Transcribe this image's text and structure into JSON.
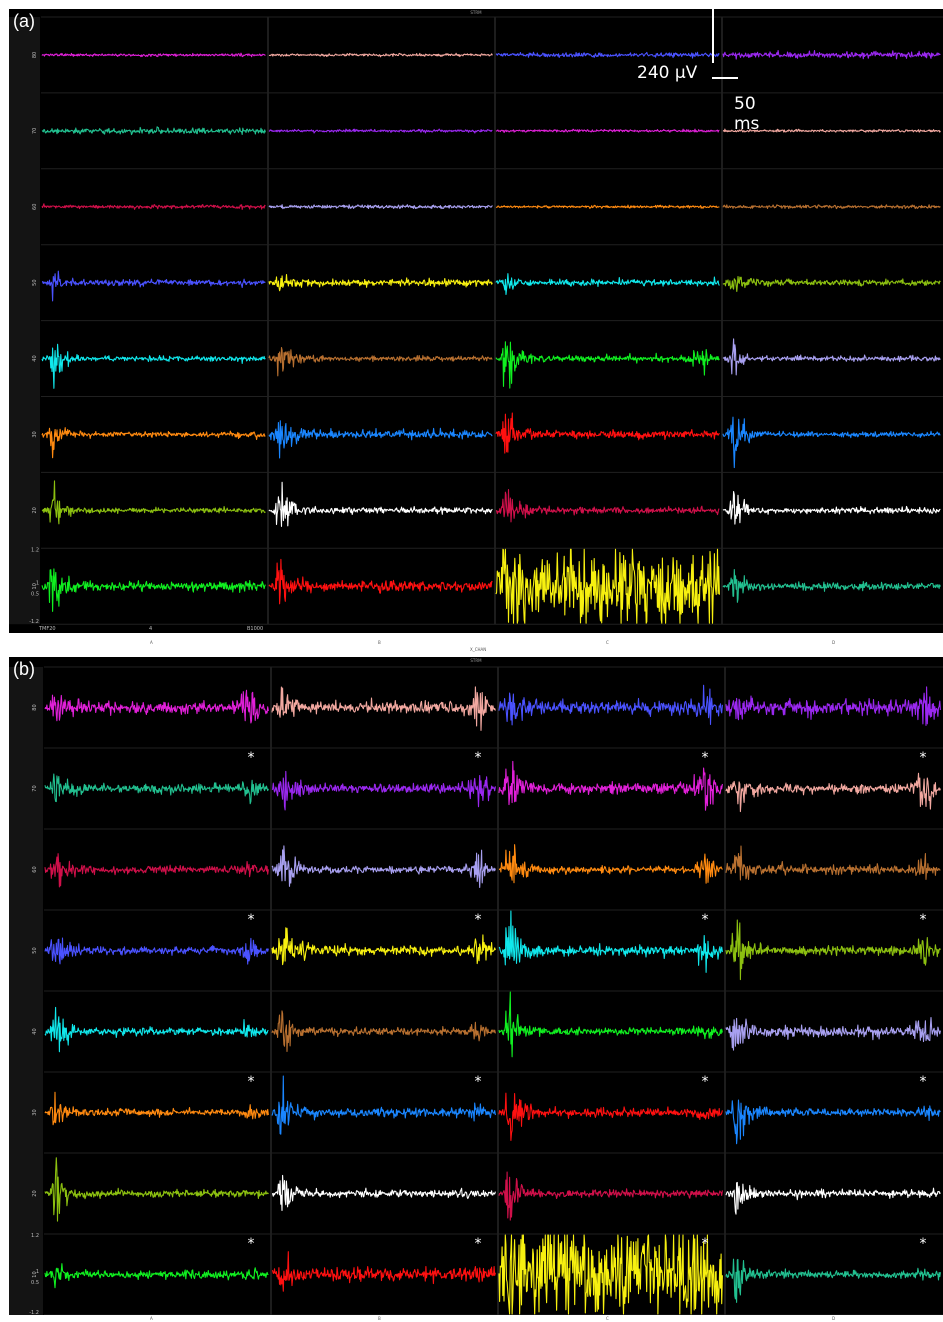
{
  "chart_data": [
    {
      "type": "line",
      "panel_label": "(a)",
      "header_text": "STRM",
      "x_label": "X_CHAN",
      "column_labels": [
        "A",
        "B",
        "C",
        "D"
      ],
      "row_labels": [
        "80",
        "70",
        "60",
        "50",
        "40",
        "30",
        "20",
        "10"
      ],
      "y_ticks": [
        "1.2",
        "1",
        "0.5",
        "-1.2"
      ],
      "corner_labels": [
        "TMF20",
        "4",
        "B1000"
      ],
      "scale_bar": {
        "amplitude": "240 µV",
        "time": "50 ms"
      },
      "grid": true,
      "rows": [
        {
          "colors": [
            "#e020d8",
            "#f2a8a0",
            "#4a52ff",
            "#9a28f0"
          ],
          "noise": [
            0.03,
            0.03,
            0.05,
            0.07
          ],
          "burst": [
            0,
            0,
            0,
            0
          ],
          "peaks": [
            0,
            0,
            0,
            0
          ]
        },
        {
          "colors": [
            "#22c090",
            "#9a28f0",
            "#e020d8",
            "#f2a8a0"
          ],
          "noise": [
            0.06,
            0.03,
            0.03,
            0.03
          ],
          "burst": [
            0,
            0,
            0,
            0
          ],
          "peaks": [
            0,
            0,
            0,
            0
          ]
        },
        {
          "colors": [
            "#d0104a",
            "#a8a0f0",
            "#ff8a10",
            "#b87030"
          ],
          "noise": [
            0.04,
            0.04,
            0.03,
            0.04
          ],
          "burst": [
            0,
            0,
            0,
            0
          ],
          "peaks": [
            0,
            0,
            0,
            0
          ]
        },
        {
          "colors": [
            "#4a52ff",
            "#f7f010",
            "#10e8ec",
            "#8cc010"
          ],
          "noise": [
            0.07,
            0.08,
            0.07,
            0.07
          ],
          "burst": [
            0.25,
            0.2,
            0.2,
            0.3
          ],
          "peaks": [
            0,
            0,
            0,
            0
          ]
        },
        {
          "colors": [
            "#10e8ec",
            "#b87030",
            "#10f020",
            "#a8a0f0"
          ],
          "noise": [
            0.06,
            0.06,
            0.07,
            0.06
          ],
          "burst": [
            0.55,
            0.45,
            0.85,
            0.45
          ],
          "peaks": [
            0,
            0,
            0.25,
            0
          ]
        },
        {
          "colors": [
            "#ff8a10",
            "#1a86ff",
            "#ff1010",
            "#1a86ff"
          ],
          "noise": [
            0.06,
            0.1,
            0.1,
            0.06
          ],
          "burst": [
            0.6,
            0.8,
            0.75,
            0.7
          ],
          "peaks": [
            0,
            0,
            0,
            0
          ]
        },
        {
          "colors": [
            "#8cc010",
            "#ffffff",
            "#d0104a",
            "#ffffff"
          ],
          "noise": [
            0.06,
            0.07,
            0.07,
            0.07
          ],
          "burst": [
            0.6,
            0.8,
            0.6,
            0.5
          ],
          "peaks": [
            0,
            0,
            0,
            0
          ]
        },
        {
          "colors": [
            "#10f020",
            "#ff1010",
            "#f7f010",
            "#22c090"
          ],
          "noise": [
            0.1,
            0.12,
            0.9,
            0.08
          ],
          "burst": [
            0.7,
            0.6,
            0.2,
            0.6
          ],
          "peaks": [
            0,
            0,
            0,
            0
          ]
        }
      ]
    },
    {
      "type": "line",
      "panel_label": "(b)",
      "header_text": "STRM",
      "column_labels": [
        "A",
        "B",
        "C",
        "D"
      ],
      "row_labels": [
        "80",
        "70",
        "60",
        "50",
        "40",
        "30",
        "20",
        "10"
      ],
      "y_ticks": [
        "1.2",
        "1",
        "0.5",
        "-1.2"
      ],
      "grid": true,
      "marker_symbol": "*",
      "rows": [
        {
          "colors": [
            "#e020d8",
            "#f2a8a0",
            "#4a52ff",
            "#9a28f0"
          ],
          "noise": [
            0.12,
            0.12,
            0.14,
            0.16
          ],
          "burst": [
            0.5,
            0.4,
            0.45,
            0.3
          ],
          "peaks": [
            0.5,
            0.55,
            0.45,
            0.3
          ],
          "star": [
            false,
            false,
            false,
            false
          ]
        },
        {
          "colors": [
            "#22c090",
            "#9a28f0",
            "#e020d8",
            "#f2a8a0"
          ],
          "noise": [
            0.1,
            0.1,
            0.12,
            0.1
          ],
          "burst": [
            0.55,
            0.6,
            0.6,
            0.55
          ],
          "peaks": [
            0.2,
            0.45,
            0.55,
            0.4
          ],
          "star": [
            true,
            true,
            true,
            true
          ]
        },
        {
          "colors": [
            "#d0104a",
            "#a8a0f0",
            "#ff8a10",
            "#b87030"
          ],
          "noise": [
            0.08,
            0.08,
            0.08,
            0.1
          ],
          "burst": [
            0.5,
            0.55,
            0.7,
            0.55
          ],
          "peaks": [
            0.1,
            0.35,
            0.35,
            0.2
          ],
          "star": [
            false,
            false,
            false,
            false
          ]
        },
        {
          "colors": [
            "#4a52ff",
            "#f7f010",
            "#10e8ec",
            "#8cc010"
          ],
          "noise": [
            0.08,
            0.1,
            0.1,
            0.1
          ],
          "burst": [
            0.5,
            0.9,
            0.8,
            0.7
          ],
          "peaks": [
            0.2,
            0.3,
            0.35,
            0.3
          ],
          "star": [
            true,
            true,
            true,
            true
          ]
        },
        {
          "colors": [
            "#10e8ec",
            "#b87030",
            "#10f020",
            "#a8a0f0"
          ],
          "noise": [
            0.08,
            0.08,
            0.08,
            0.12
          ],
          "burst": [
            0.5,
            0.55,
            0.8,
            0.6
          ],
          "peaks": [
            0.1,
            0.1,
            0.1,
            0.25
          ],
          "star": [
            false,
            false,
            false,
            false
          ]
        },
        {
          "colors": [
            "#ff8a10",
            "#1a86ff",
            "#ff1010",
            "#1a86ff"
          ],
          "noise": [
            0.08,
            0.1,
            0.1,
            0.08
          ],
          "burst": [
            0.5,
            0.6,
            0.8,
            0.75
          ],
          "peaks": [
            0.1,
            0.1,
            0.15,
            0.1
          ],
          "star": [
            true,
            true,
            true,
            true
          ]
        },
        {
          "colors": [
            "#8cc010",
            "#ffffff",
            "#d0104a",
            "#ffffff"
          ],
          "noise": [
            0.08,
            0.08,
            0.08,
            0.08
          ],
          "burst": [
            0.5,
            0.6,
            0.7,
            0.55
          ],
          "peaks": [
            0,
            0,
            0,
            0
          ],
          "star": [
            false,
            false,
            false,
            false
          ]
        },
        {
          "colors": [
            "#10f020",
            "#ff1010",
            "#f7f010",
            "#22c090"
          ],
          "noise": [
            0.08,
            0.14,
            0.95,
            0.08
          ],
          "burst": [
            0.2,
            0.3,
            0.2,
            0.75
          ],
          "peaks": [
            0.05,
            0.05,
            0.2,
            0.05
          ],
          "star": [
            true,
            true,
            true,
            true
          ]
        }
      ]
    }
  ]
}
